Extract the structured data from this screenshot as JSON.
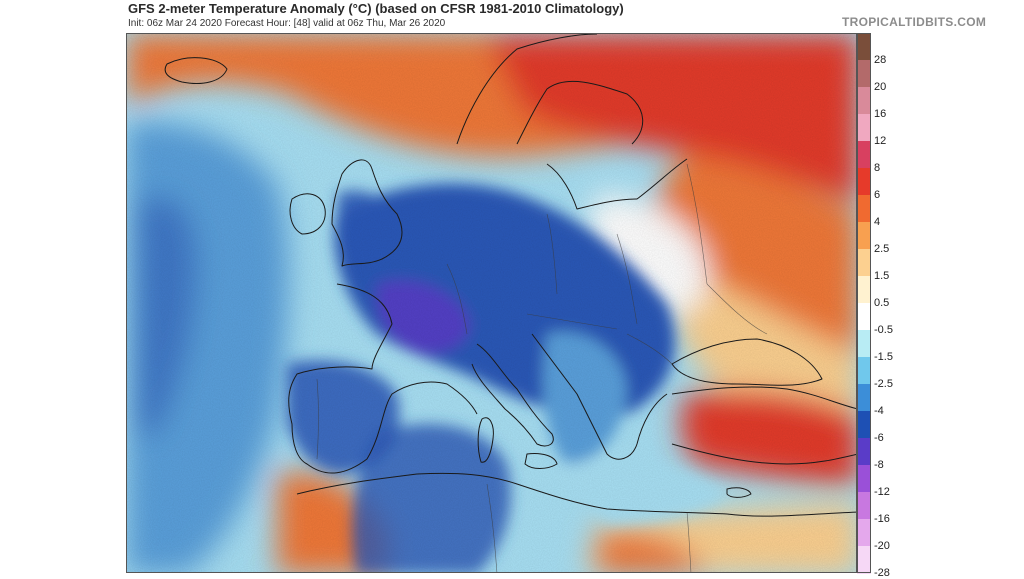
{
  "header": {
    "title": "GFS 2-meter Temperature Anomaly (°C) (based on CFSR 1981-2010 Climatology)",
    "subtitle": "Init: 06z Mar 24 2020   Forecast Hour: [48]   valid at 06z Thu, Mar 26 2020",
    "brand": "TROPICALTIDBITS.COM"
  },
  "colorbar": {
    "levels": [
      {
        "label": "28",
        "color": "#7a4e3a"
      },
      {
        "label": "20",
        "color": "#b36a6a"
      },
      {
        "label": "16",
        "color": "#d98a9a"
      },
      {
        "label": "12",
        "color": "#f0a8c0"
      },
      {
        "label": "8",
        "color": "#d84060"
      },
      {
        "label": "6",
        "color": "#e63a2a"
      },
      {
        "label": "4",
        "color": "#f06a30"
      },
      {
        "label": "2.5",
        "color": "#f8a050"
      },
      {
        "label": "1.5",
        "color": "#fcd090"
      },
      {
        "label": "0.5",
        "color": "#fff2d0"
      },
      {
        "label": "-0.5",
        "color": "#ffffff"
      },
      {
        "label": "-1.5",
        "color": "#b8ecf4"
      },
      {
        "label": "-2.5",
        "color": "#70c8ec"
      },
      {
        "label": "-4",
        "color": "#3c8ed8"
      },
      {
        "label": "-6",
        "color": "#1e50b4"
      },
      {
        "label": "-8",
        "color": "#5a3cc8"
      },
      {
        "label": "-12",
        "color": "#9a50d8"
      },
      {
        "label": "-16",
        "color": "#c878e0"
      },
      {
        "label": "-20",
        "color": "#e4a8ec"
      },
      {
        "label": "-28",
        "color": "#f6d8f6"
      }
    ]
  },
  "map": {
    "colors": {
      "ocean_west": "#5aa0dc",
      "ocean_light": "#a8e0f4",
      "warm_north": "#f07838",
      "hot_east": "#e33a2a",
      "cold_core": "#2a58b8",
      "very_cold": "#5a3cc8",
      "neutral": "#ffffff",
      "sand": "#fcd090"
    }
  }
}
